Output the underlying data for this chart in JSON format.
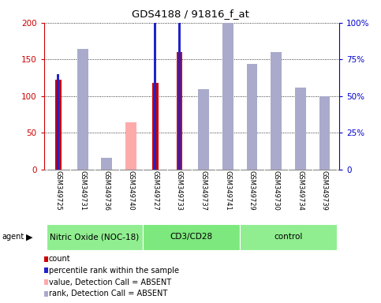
{
  "title": "GDS4188 / 91816_f_at",
  "samples": [
    "GSM349725",
    "GSM349731",
    "GSM349736",
    "GSM349740",
    "GSM349727",
    "GSM349733",
    "GSM349737",
    "GSM349741",
    "GSM349729",
    "GSM349730",
    "GSM349734",
    "GSM349739"
  ],
  "group_boundaries": [
    {
      "label": "Nitric Oxide (NOC-18)",
      "start": 0,
      "end": 4,
      "color": "#90ee90"
    },
    {
      "label": "CD3/CD28",
      "start": 4,
      "end": 8,
      "color": "#7de87d"
    },
    {
      "label": "control",
      "start": 8,
      "end": 12,
      "color": "#90ee90"
    }
  ],
  "count_values": [
    122,
    0,
    0,
    0,
    118,
    160,
    0,
    0,
    0,
    0,
    0,
    0
  ],
  "percentile_values": [
    65,
    0,
    0,
    0,
    106,
    120,
    0,
    0,
    0,
    0,
    0,
    0
  ],
  "absent_value_bars": [
    0,
    95,
    13,
    65,
    0,
    0,
    47,
    138,
    111,
    93,
    49,
    76
  ],
  "absent_rank_bars": [
    0,
    82,
    8,
    0,
    0,
    0,
    55,
    105,
    72,
    80,
    56,
    50
  ],
  "count_color": "#cc0000",
  "percentile_color": "#2222cc",
  "absent_value_color": "#ffaaaa",
  "absent_rank_color": "#aaaacc",
  "ylim_left": [
    0,
    200
  ],
  "ylim_right": [
    0,
    100
  ],
  "yticks_left": [
    0,
    50,
    100,
    150,
    200
  ],
  "yticks_right": [
    0,
    25,
    50,
    75,
    100
  ],
  "ytick_labels_left": [
    "0",
    "50",
    "100",
    "150",
    "200"
  ],
  "ytick_labels_right": [
    "0",
    "25%",
    "50%",
    "75%",
    "100%"
  ],
  "left_axis_color": "#cc0000",
  "right_axis_color": "#0000cc",
  "background_color": "#ffffff",
  "plot_bg_color": "#ffffff",
  "sample_bg_color": "#d3d3d3",
  "legend_items": [
    {
      "color": "#cc0000",
      "label": "count"
    },
    {
      "color": "#2222cc",
      "label": "percentile rank within the sample"
    },
    {
      "color": "#ffaaaa",
      "label": "value, Detection Call = ABSENT"
    },
    {
      "color": "#aaaacc",
      "label": "rank, Detection Call = ABSENT"
    }
  ]
}
